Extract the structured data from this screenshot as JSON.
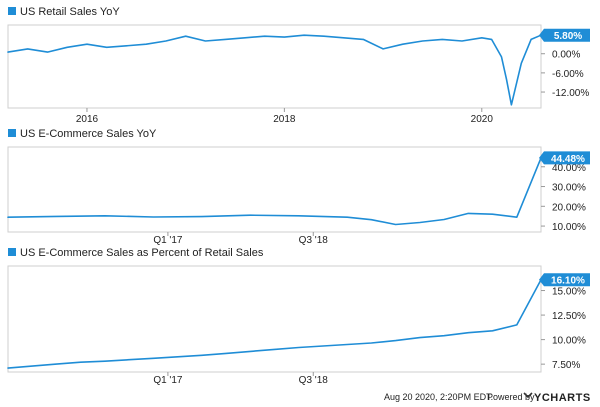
{
  "footer": {
    "timestamp": "Aug 20 2020, 2:20PM EDT.",
    "powered_by": "Powered by",
    "brand": "YCHARTS"
  },
  "colors": {
    "line": "#1f8dd6",
    "label_bg": "#1f8dd6",
    "grid": "#e6e6e6",
    "border": "#cfcfcf"
  },
  "chart_data": [
    {
      "type": "line",
      "title": "US Retail Sales YoY",
      "x_ticks": [
        "2016",
        "2018",
        "2020"
      ],
      "x_domain": [
        2015.2,
        2020.6
      ],
      "y_ticks": [
        6,
        0,
        -6,
        -12
      ],
      "y_tick_labels": [
        "6.00%",
        "0.00%",
        "-6.00%",
        "-12.00%"
      ],
      "ylim": [
        -17,
        9
      ],
      "last_value_label": "5.80%",
      "grid": false,
      "series": [
        {
          "x": [
            2015.2,
            2015.4,
            2015.6,
            2015.8,
            2016.0,
            2016.2,
            2016.4,
            2016.6,
            2016.8,
            2017.0,
            2017.2,
            2017.4,
            2017.6,
            2017.8,
            2018.0,
            2018.2,
            2018.4,
            2018.6,
            2018.8,
            2019.0,
            2019.2,
            2019.4,
            2019.6,
            2019.8,
            2020.0,
            2020.1,
            2020.2,
            2020.25,
            2020.3,
            2020.4,
            2020.5,
            2020.6
          ],
          "values": [
            0.5,
            1.5,
            0.5,
            2.0,
            3.0,
            2.0,
            2.5,
            3.0,
            4.0,
            5.5,
            4.0,
            4.5,
            5.0,
            5.5,
            5.2,
            5.8,
            5.5,
            5.0,
            4.5,
            1.5,
            3.0,
            4.0,
            4.5,
            4.0,
            5.0,
            4.5,
            -1.0,
            -8.0,
            -16.0,
            -3.0,
            4.5,
            5.8
          ]
        }
      ]
    },
    {
      "type": "line",
      "title": "US E-Commerce Sales YoY",
      "x_ticks": [
        "Q1 '17",
        "Q3 '18"
      ],
      "x_domain": [
        2015.0,
        2020.5
      ],
      "y_ticks": [
        40,
        30,
        20,
        10
      ],
      "y_tick_labels": [
        "40.00%",
        "30.00%",
        "20.00%",
        "10.00%"
      ],
      "ylim": [
        7,
        50
      ],
      "last_value_label": "44.48%",
      "grid": false,
      "series": [
        {
          "x": [
            2015.0,
            2015.5,
            2016.0,
            2016.5,
            2017.0,
            2017.5,
            2018.0,
            2018.5,
            2018.75,
            2019.0,
            2019.25,
            2019.5,
            2019.75,
            2020.0,
            2020.25,
            2020.5
          ],
          "values": [
            14.5,
            14.9,
            15.2,
            14.6,
            14.8,
            15.5,
            15.2,
            14.5,
            13.2,
            10.8,
            11.8,
            13.3,
            16.4,
            16.0,
            14.5,
            44.48
          ]
        }
      ]
    },
    {
      "type": "line",
      "title": "US E-Commerce Sales as Percent of Retail Sales",
      "x_ticks": [
        "Q1 '17",
        "Q3 '18"
      ],
      "x_domain": [
        2015.0,
        2020.5
      ],
      "y_ticks": [
        15,
        12.5,
        10,
        7.5
      ],
      "y_tick_labels": [
        "15.00%",
        "12.50%",
        "10.00%",
        "7.50%"
      ],
      "ylim": [
        6.7,
        17.5
      ],
      "last_value_label": "16.10%",
      "grid": false,
      "series": [
        {
          "x": [
            2015.0,
            2015.25,
            2015.5,
            2015.75,
            2016.0,
            2016.25,
            2016.5,
            2016.75,
            2017.0,
            2017.25,
            2017.5,
            2017.75,
            2018.0,
            2018.25,
            2018.5,
            2018.75,
            2019.0,
            2019.25,
            2019.5,
            2019.75,
            2020.0,
            2020.25,
            2020.5
          ],
          "values": [
            7.1,
            7.3,
            7.5,
            7.7,
            7.8,
            7.95,
            8.1,
            8.25,
            8.4,
            8.6,
            8.8,
            9.0,
            9.2,
            9.35,
            9.5,
            9.65,
            9.9,
            10.2,
            10.4,
            10.7,
            10.9,
            11.5,
            16.1
          ]
        }
      ]
    }
  ]
}
